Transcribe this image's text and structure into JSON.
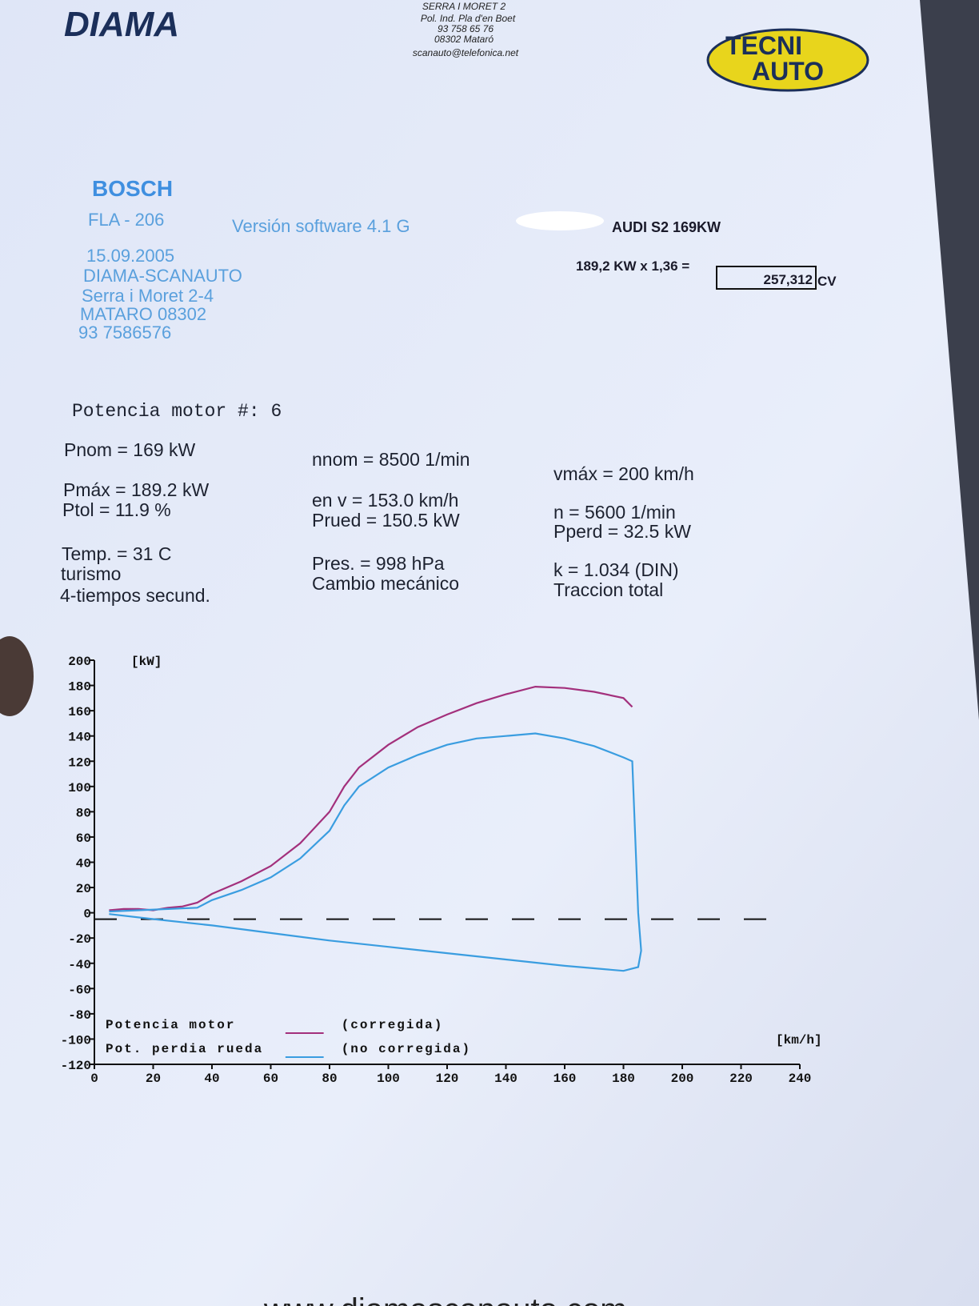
{
  "header": {
    "logo": "DIAMA",
    "address": [
      "SERRA I MORET 2",
      "Pol. Ind. Pla d'en Boet",
      "93 758 65 76",
      "08302 Mataró",
      "scanauto@telefonica.net"
    ],
    "badge": [
      "TECNI",
      "AUTO"
    ]
  },
  "info": {
    "brand": "BOSCH",
    "model": "FLA - 206",
    "software": "Versión software  4.1 G",
    "shop": [
      "15.09.2005",
      "DIAMA-SCANAUTO",
      "Serra i Moret 2-4",
      "MATARO 08302",
      "93 7586576"
    ],
    "vehicle": "AUDI S2  169KW",
    "formula": "189,2 KW x 1,36 =",
    "result": "257,312",
    "result_unit": "CV"
  },
  "params": {
    "title": "Potencia motor  #: 6",
    "col1": [
      "Pnom  =    169 kW",
      "Pmáx  =  189.2 kW",
      "Ptol  =   11.9 %",
      "Temp. =   31   C",
      "turismo",
      "4-tiempos secund."
    ],
    "col2": [
      "nnom  =   8500 1/min",
      "en  v =  153.0 km/h",
      "Prued =  150.5 kW",
      "Pres. =  998   hPa",
      "Cambio mecánico"
    ],
    "col3": [
      "vmáx  =    200 km/h",
      "n =   5600 1/min",
      "Pperd =   32.5 kW",
      "k     =  1.034 (DIN)",
      "Traccion total"
    ]
  },
  "chart_data": {
    "type": "line",
    "y_label": "[kW]",
    "x_label": "[km/h]",
    "xlim": [
      0,
      240
    ],
    "xticks": [
      0,
      20,
      40,
      60,
      80,
      100,
      120,
      140,
      160,
      180,
      200,
      220,
      240
    ],
    "ylim": [
      -120,
      200
    ],
    "yticks": [
      -120,
      -100,
      -80,
      -60,
      -40,
      -20,
      0,
      20,
      40,
      60,
      80,
      100,
      120,
      140,
      160,
      180,
      200
    ],
    "legend_text": [
      "Potencia motor",
      "Pot. perdia rueda"
    ],
    "series": [
      {
        "name": "(corregida)",
        "color": "#a3307c",
        "x": [
          5,
          10,
          15,
          20,
          25,
          30,
          35,
          40,
          50,
          60,
          70,
          80,
          85,
          90,
          100,
          110,
          120,
          130,
          140,
          150,
          160,
          170,
          180,
          183
        ],
        "values": [
          2,
          3,
          3,
          2,
          4,
          5,
          8,
          15,
          25,
          37,
          55,
          80,
          100,
          115,
          133,
          147,
          157,
          166,
          173,
          179,
          178,
          175,
          170,
          163
        ]
      },
      {
        "name": "(no corregida)",
        "color": "#3a9de0",
        "x": [
          5,
          15,
          25,
          35,
          40,
          50,
          60,
          70,
          80,
          85,
          90,
          100,
          110,
          120,
          130,
          140,
          150,
          160,
          170,
          180,
          183,
          184,
          185,
          186,
          185,
          180,
          160,
          140,
          120,
          100,
          80,
          60,
          40,
          20,
          5
        ],
        "values": [
          1,
          2,
          3,
          4,
          10,
          18,
          28,
          43,
          65,
          85,
          100,
          115,
          125,
          133,
          138,
          140,
          142,
          138,
          132,
          123,
          120,
          60,
          0,
          -30,
          -43,
          -46,
          -42,
          -37,
          -32,
          -27,
          -22,
          -16,
          -10,
          -5,
          -1
        ]
      }
    ]
  }
}
